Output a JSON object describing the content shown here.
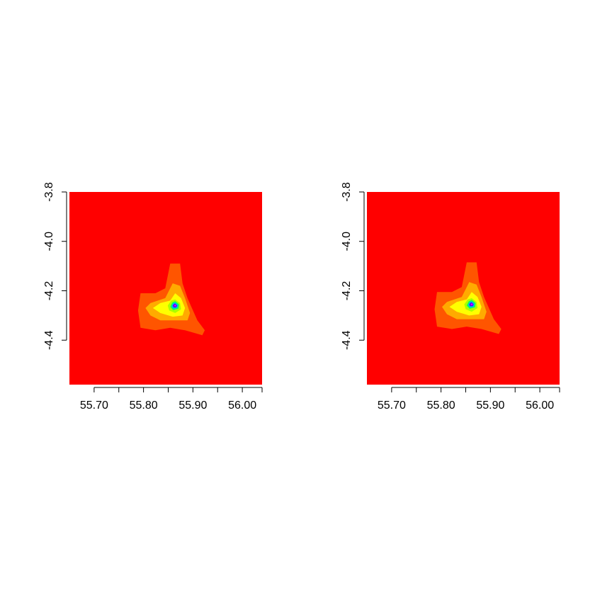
{
  "colors": {
    "background": "#ff0000",
    "levels": [
      "#ff0000",
      "#ff5500",
      "#ffaa00",
      "#ffff00",
      "#aaff00",
      "#00ff66",
      "#00aaff",
      "#5500ff",
      "#ff00ff"
    ]
  },
  "chart_data": [
    {
      "type": "heatmap",
      "title": "",
      "xlabel": "",
      "ylabel": "",
      "xlim": [
        55.65,
        56.04
      ],
      "ylim": [
        -4.58,
        -3.8
      ],
      "x_ticks": [
        55.7,
        55.75,
        55.8,
        55.85,
        55.9,
        55.95,
        56.0,
        56.04
      ],
      "x_tick_labels": [
        "55.70",
        "55.80",
        "55.90",
        "56.00"
      ],
      "x_tick_label_values": [
        55.7,
        55.8,
        55.9,
        56.0
      ],
      "y_ticks": [
        -3.8,
        -4.0,
        -4.2,
        -4.4
      ],
      "y_tick_labels": [
        "-3.8",
        "-4.0",
        "-4.2",
        "-4.4"
      ],
      "peak": [
        55.864,
        -4.26
      ],
      "contour_levels": 9
    },
    {
      "type": "heatmap",
      "title": "",
      "xlabel": "",
      "ylabel": "",
      "xlim": [
        55.65,
        56.04
      ],
      "ylim": [
        -4.58,
        -3.8
      ],
      "x_ticks": [
        55.7,
        55.75,
        55.8,
        55.85,
        55.9,
        55.95,
        56.0,
        56.04
      ],
      "x_tick_labels": [
        "55.70",
        "55.80",
        "55.90",
        "56.00"
      ],
      "x_tick_label_values": [
        55.7,
        55.8,
        55.9,
        56.0
      ],
      "y_ticks": [
        -3.8,
        -4.0,
        -4.2,
        -4.4
      ],
      "y_tick_labels": [
        "-3.8",
        "-4.0",
        "-4.2",
        "-4.4"
      ],
      "peak": [
        55.862,
        -4.255
      ],
      "contour_levels": 9
    }
  ]
}
